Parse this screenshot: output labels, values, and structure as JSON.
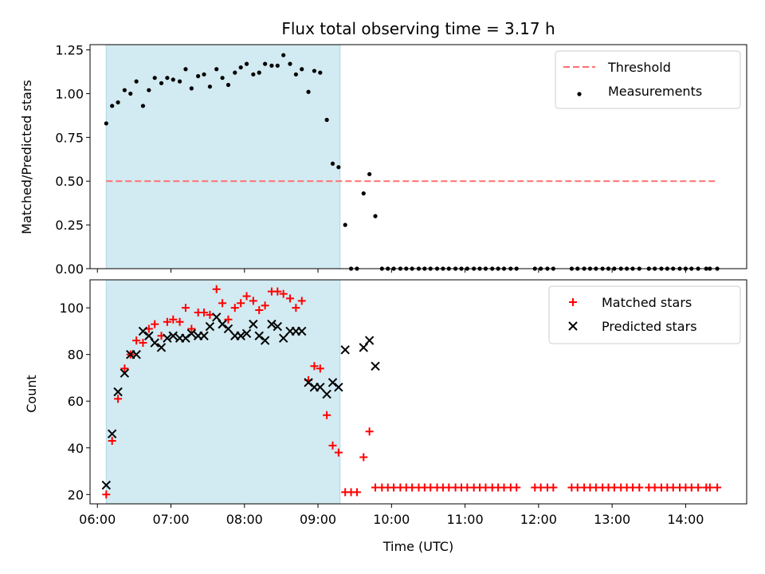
{
  "chart_data": [
    {
      "type": "scatter",
      "panel": "top",
      "title": "Flux total observing time = 3.17 h",
      "xlabel": "",
      "ylabel": "Matched/Predicted stars",
      "ylim": [
        0,
        1.28
      ],
      "yticks": [
        0.0,
        0.25,
        0.5,
        0.75,
        1.0,
        1.25
      ],
      "ytick_labels": [
        "0.00",
        "0.25",
        "0.50",
        "0.75",
        "1.00",
        "1.25"
      ],
      "xlim_hours": [
        5.9,
        14.83
      ],
      "shaded_region_hours": [
        6.12,
        9.3
      ],
      "shaded_color": "#add8e6",
      "grid": false,
      "legend": "top-right",
      "threshold": {
        "name": "Threshold",
        "value": 0.5,
        "x_hours": [
          6.12,
          14.43
        ],
        "color": "#ff7070",
        "style": "dashed"
      },
      "series": [
        {
          "name": "Measurements",
          "color": "#000000",
          "marker": "dot",
          "x_hours": [
            6.12,
            6.2,
            6.28,
            6.37,
            6.45,
            6.53,
            6.62,
            6.7,
            6.78,
            6.87,
            6.95,
            7.03,
            7.12,
            7.2,
            7.28,
            7.37,
            7.45,
            7.53,
            7.62,
            7.7,
            7.78,
            7.87,
            7.95,
            8.03,
            8.12,
            8.2,
            8.28,
            8.37,
            8.45,
            8.53,
            8.62,
            8.7,
            8.78,
            8.87,
            8.95,
            9.03,
            9.12,
            9.2,
            9.28,
            9.37,
            9.45,
            9.53,
            9.62,
            9.7,
            9.78,
            9.87,
            9.95,
            10.03,
            10.12,
            10.2,
            10.28,
            10.37,
            10.45,
            10.53,
            10.62,
            10.7,
            10.78,
            10.87,
            10.95,
            11.03,
            11.12,
            11.2,
            11.28,
            11.37,
            11.45,
            11.53,
            11.62,
            11.7,
            11.95,
            12.03,
            12.12,
            12.2,
            12.45,
            12.53,
            12.62,
            12.7,
            12.78,
            12.87,
            12.95,
            13.03,
            13.12,
            13.2,
            13.28,
            13.37,
            13.5,
            13.58,
            13.67,
            13.75,
            13.83,
            13.92,
            14.0,
            14.08,
            14.17,
            14.28,
            14.33,
            14.43
          ],
          "y": [
            0.83,
            0.93,
            0.95,
            1.02,
            1.0,
            1.07,
            0.93,
            1.02,
            1.09,
            1.06,
            1.09,
            1.08,
            1.07,
            1.14,
            1.03,
            1.1,
            1.11,
            1.04,
            1.14,
            1.09,
            1.05,
            1.12,
            1.15,
            1.17,
            1.11,
            1.12,
            1.17,
            1.16,
            1.16,
            1.22,
            1.17,
            1.11,
            1.14,
            1.01,
            1.13,
            1.12,
            0.85,
            0.6,
            0.58,
            0.25,
            0.0,
            0.0,
            0.43,
            0.54,
            0.3,
            0.0,
            0.0,
            0.0,
            0.0,
            0.0,
            0.0,
            0.0,
            0.0,
            0.0,
            0.0,
            0.0,
            0.0,
            0.0,
            0.0,
            0.0,
            0.0,
            0.0,
            0.0,
            0.0,
            0.0,
            0.0,
            0.0,
            0.0,
            0.0,
            0.0,
            0.0,
            0.0,
            0.0,
            0.0,
            0.0,
            0.0,
            0.0,
            0.0,
            0.0,
            0.0,
            0.0,
            0.0,
            0.0,
            0.0,
            0.0,
            0.0,
            0.0,
            0.0,
            0.0,
            0.0,
            0.0,
            0.0,
            0.0,
            0.0,
            0.0,
            0.0
          ]
        }
      ]
    },
    {
      "type": "scatter",
      "panel": "bottom",
      "title": "",
      "xlabel": "Time (UTC)",
      "ylabel": "Count",
      "ylim": [
        16,
        112
      ],
      "yticks": [
        20,
        40,
        60,
        80,
        100
      ],
      "ytick_labels": [
        "20",
        "40",
        "60",
        "80",
        "100"
      ],
      "xlim_hours": [
        5.9,
        14.83
      ],
      "xticks_hours": [
        6,
        7,
        8,
        9,
        10,
        11,
        12,
        13,
        14
      ],
      "xtick_labels": [
        "06:00",
        "07:00",
        "08:00",
        "09:00",
        "10:00",
        "11:00",
        "12:00",
        "13:00",
        "14:00"
      ],
      "shaded_region_hours": [
        6.12,
        9.3
      ],
      "shaded_color": "#add8e6",
      "grid": false,
      "legend": "top-right",
      "series": [
        {
          "name": "Matched stars",
          "color": "#ff0000",
          "marker": "plus",
          "x_hours": [
            6.12,
            6.2,
            6.28,
            6.37,
            6.45,
            6.53,
            6.62,
            6.7,
            6.78,
            6.87,
            6.95,
            7.03,
            7.12,
            7.2,
            7.28,
            7.37,
            7.45,
            7.53,
            7.62,
            7.7,
            7.78,
            7.87,
            7.95,
            8.03,
            8.12,
            8.2,
            8.28,
            8.37,
            8.45,
            8.53,
            8.62,
            8.7,
            8.78,
            8.87,
            8.95,
            9.03,
            9.12,
            9.2,
            9.28,
            9.37,
            9.45,
            9.53,
            9.62,
            9.7,
            9.78,
            9.87,
            9.95,
            10.03,
            10.12,
            10.2,
            10.28,
            10.37,
            10.45,
            10.53,
            10.62,
            10.7,
            10.78,
            10.87,
            10.95,
            11.03,
            11.12,
            11.2,
            11.28,
            11.37,
            11.45,
            11.53,
            11.62,
            11.7,
            11.95,
            12.03,
            12.12,
            12.2,
            12.45,
            12.53,
            12.62,
            12.7,
            12.78,
            12.87,
            12.95,
            13.03,
            13.12,
            13.2,
            13.28,
            13.37,
            13.5,
            13.58,
            13.67,
            13.75,
            13.83,
            13.92,
            14.0,
            14.08,
            14.17,
            14.28,
            14.33,
            14.43
          ],
          "y": [
            20,
            43,
            61,
            74,
            80,
            86,
            85,
            91,
            93,
            88,
            94,
            95,
            94,
            100,
            91,
            98,
            98,
            97,
            108,
            102,
            95,
            100,
            102,
            105,
            103,
            99,
            101,
            107,
            107,
            106,
            104,
            100,
            103,
            69,
            75,
            74,
            54,
            41,
            38,
            21,
            21,
            21,
            36,
            47,
            23,
            23,
            23,
            23,
            23,
            23,
            23,
            23,
            23,
            23,
            23,
            23,
            23,
            23,
            23,
            23,
            23,
            23,
            23,
            23,
            23,
            23,
            23,
            23,
            23,
            23,
            23,
            23,
            23,
            23,
            23,
            23,
            23,
            23,
            23,
            23,
            23,
            23,
            23,
            23,
            23,
            23,
            23,
            23,
            23,
            23,
            23,
            23,
            23,
            23,
            23,
            23
          ]
        },
        {
          "name": "Predicted stars",
          "color": "#000000",
          "marker": "x",
          "x_hours": [
            6.12,
            6.2,
            6.28,
            6.37,
            6.45,
            6.53,
            6.62,
            6.7,
            6.78,
            6.87,
            6.95,
            7.03,
            7.12,
            7.2,
            7.28,
            7.37,
            7.45,
            7.53,
            7.62,
            7.7,
            7.78,
            7.87,
            7.95,
            8.03,
            8.12,
            8.2,
            8.28,
            8.37,
            8.45,
            8.53,
            8.62,
            8.7,
            8.78,
            8.87,
            8.95,
            9.03,
            9.12,
            9.2,
            9.28,
            9.37,
            9.62,
            9.7,
            9.78
          ],
          "y": [
            24,
            46,
            64,
            72,
            80,
            80,
            90,
            88,
            85,
            83,
            87,
            88,
            87,
            87,
            89,
            88,
            88,
            92,
            96,
            93,
            91,
            88,
            88,
            89,
            93,
            88,
            86,
            93,
            92,
            87,
            90,
            90,
            90,
            68,
            66,
            66,
            63,
            68,
            66,
            82,
            83,
            86,
            75
          ]
        }
      ]
    }
  ]
}
